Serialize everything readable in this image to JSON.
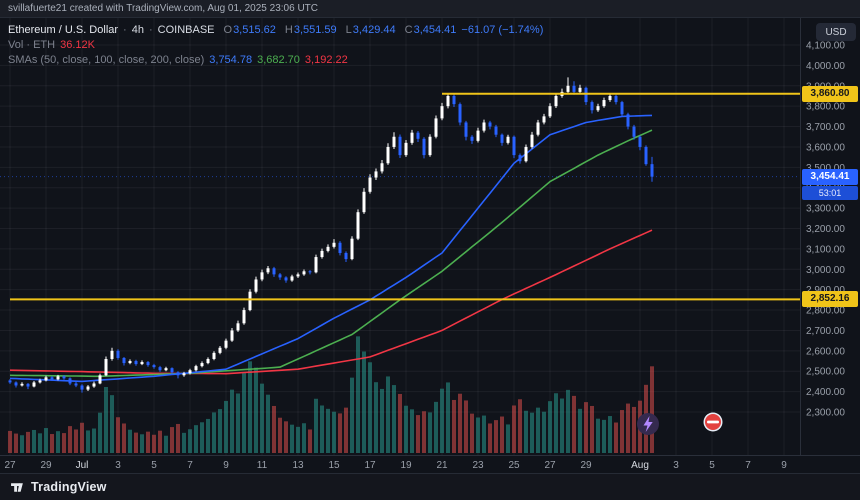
{
  "attribution": "svillafuerte21 created with TradingView.com, Aug 01, 2025 23:06 UTC",
  "footer": {
    "brand": "TradingView"
  },
  "legend": {
    "symbol": "Ethereum / U.S. Dollar",
    "separator": "·",
    "interval": "4h",
    "exchange": "COINBASE",
    "ohlc": {
      "o_label": "O",
      "o": "3,515.62",
      "h_label": "H",
      "h": "3,551.59",
      "l_label": "L",
      "l": "3,429.44",
      "c_label": "C",
      "c": "3,454.41",
      "change": "−61.07 (−1.74%)"
    },
    "volume": {
      "label": "Vol · ETH",
      "value": "36.12K"
    },
    "smas": {
      "label": "SMAs (50, close, 100, close, 200, close)",
      "sma50": "3,754.78",
      "sma100": "3,682.70",
      "sma200": "3,192.22"
    }
  },
  "price_axis": {
    "currency_label": "USD",
    "levels": {
      "upper": {
        "text": "3,860.80",
        "price": 3860.8,
        "color": "#f0c419"
      },
      "last": {
        "text": "3,454.41",
        "price": 3454.41,
        "countdown": "53:01",
        "color": "#2962ff"
      },
      "lower": {
        "text": "2,852.16",
        "price": 2852.16,
        "color": "#f0c419"
      }
    }
  },
  "stickers": [
    {
      "name": "lightning-swirl-sticker"
    },
    {
      "name": "no-entry-sticker"
    }
  ],
  "chart_data": {
    "type": "candlestick",
    "title": "Ethereum / U.S. Dollar 4h COINBASE",
    "symbol": "ETH/USD",
    "interval": "4h",
    "start_date": "2025-06-27",
    "end_date": "2025-08-01",
    "candles_per_day": 3,
    "ylim": [
      2300,
      4100
    ],
    "grid": true,
    "candle_format": [
      "open",
      "high",
      "low",
      "close",
      "volume_k"
    ],
    "colors": {
      "up": "#ffffff",
      "down": "#2962ff",
      "vol_up": "rgba(42,166,152,0.5)",
      "vol_down": "rgba(239,83,80,0.5)",
      "sma50": "#2962ff",
      "sma100": "#4caf50",
      "sma200": "#f23645",
      "level": "#f0c419"
    },
    "price_ticks": [
      "4,100.00",
      "4,000.00",
      "3,900.00",
      "3,800.00",
      "3,700.00",
      "3,600.00",
      "3,500.00",
      "3,400.00",
      "3,300.00",
      "3,200.00",
      "3,100.00",
      "3,000.00",
      "2,900.00",
      "2,800.00",
      "2,700.00",
      "2,600.00",
      "2,500.00",
      "2,400.00",
      "2,300.00"
    ],
    "time_ticks": [
      {
        "label": "27",
        "day": 0
      },
      {
        "label": "29",
        "day": 2
      },
      {
        "label": "Jul",
        "day": 4,
        "month": true
      },
      {
        "label": "3",
        "day": 6
      },
      {
        "label": "5",
        "day": 8
      },
      {
        "label": "7",
        "day": 10
      },
      {
        "label": "9",
        "day": 12
      },
      {
        "label": "11",
        "day": 14
      },
      {
        "label": "13",
        "day": 16
      },
      {
        "label": "15",
        "day": 18
      },
      {
        "label": "17",
        "day": 20
      },
      {
        "label": "19",
        "day": 22
      },
      {
        "label": "21",
        "day": 24
      },
      {
        "label": "23",
        "day": 26
      },
      {
        "label": "25",
        "day": 28
      },
      {
        "label": "27",
        "day": 30
      },
      {
        "label": "29",
        "day": 32
      },
      {
        "label": "Aug",
        "day": 35,
        "month": true
      },
      {
        "label": "3",
        "day": 37
      },
      {
        "label": "5",
        "day": 39
      },
      {
        "label": "7",
        "day": 41
      },
      {
        "label": "9",
        "day": 43
      }
    ],
    "levels": [
      {
        "price": 3860.8,
        "from_index": 72
      },
      {
        "price": 2852.16,
        "from_index": 0
      }
    ],
    "last": {
      "o": 3515.62,
      "h": 3551.59,
      "l": 3429.44,
      "c": 3454.41,
      "change": -61.07,
      "change_pct": -1.74,
      "volume_k": 36.12
    },
    "sma": {
      "sma50": {
        "i": [
          0,
          12,
          24,
          36,
          48,
          54,
          60,
          66,
          72,
          78,
          84,
          90,
          96,
          102,
          107
        ],
        "p": [
          2465,
          2450,
          2475,
          2510,
          2660,
          2760,
          2850,
          2960,
          3080,
          3300,
          3520,
          3660,
          3720,
          3750,
          3754.78
        ]
      },
      "sma100": {
        "i": [
          0,
          15,
          30,
          45,
          57,
          65,
          72,
          82,
          90,
          98,
          103,
          107
        ],
        "p": [
          2480,
          2475,
          2490,
          2520,
          2680,
          2850,
          2990,
          3230,
          3430,
          3560,
          3630,
          3682.7
        ]
      },
      "sma200": {
        "i": [
          0,
          12,
          24,
          36,
          48,
          60,
          72,
          82,
          90,
          100,
          107
        ],
        "p": [
          2505,
          2498,
          2490,
          2488,
          2510,
          2570,
          2700,
          2852,
          2960,
          3100,
          3192.22
        ]
      }
    },
    "candles": [
      [
        2455,
        2462,
        2438,
        2445,
        9.2
      ],
      [
        2445,
        2450,
        2420,
        2430,
        8.1
      ],
      [
        2430,
        2446,
        2425,
        2438,
        7.4
      ],
      [
        2438,
        2442,
        2412,
        2425,
        8.8
      ],
      [
        2425,
        2452,
        2421,
        2445,
        9.6
      ],
      [
        2445,
        2463,
        2440,
        2455,
        8.2
      ],
      [
        2455,
        2478,
        2450,
        2470,
        10.4
      ],
      [
        2470,
        2476,
        2452,
        2460,
        7.9
      ],
      [
        2460,
        2482,
        2455,
        2475,
        9.1
      ],
      [
        2475,
        2481,
        2458,
        2465,
        8.3
      ],
      [
        2465,
        2470,
        2432,
        2440,
        11.2
      ],
      [
        2440,
        2447,
        2422,
        2430,
        9.8
      ],
      [
        2430,
        2436,
        2395,
        2410,
        12.6
      ],
      [
        2410,
        2432,
        2403,
        2425,
        9.4
      ],
      [
        2425,
        2449,
        2419,
        2440,
        10.2
      ],
      [
        2440,
        2488,
        2436,
        2480,
        16.8
      ],
      [
        2480,
        2572,
        2476,
        2560,
        27.5
      ],
      [
        2560,
        2615,
        2552,
        2600,
        24.1
      ],
      [
        2600,
        2608,
        2556,
        2565,
        14.9
      ],
      [
        2565,
        2570,
        2528,
        2540,
        12.3
      ],
      [
        2540,
        2558,
        2534,
        2550,
        9.7
      ],
      [
        2550,
        2556,
        2527,
        2535,
        8.5
      ],
      [
        2535,
        2553,
        2530,
        2545,
        7.8
      ],
      [
        2545,
        2550,
        2522,
        2530,
        8.9
      ],
      [
        2530,
        2536,
        2512,
        2520,
        7.6
      ],
      [
        2520,
        2526,
        2497,
        2505,
        9.3
      ],
      [
        2505,
        2522,
        2500,
        2515,
        7.2
      ],
      [
        2515,
        2519,
        2486,
        2495,
        10.8
      ],
      [
        2495,
        2500,
        2465,
        2480,
        12.1
      ],
      [
        2480,
        2497,
        2473,
        2490,
        8.4
      ],
      [
        2490,
        2512,
        2484,
        2505,
        9.9
      ],
      [
        2505,
        2532,
        2499,
        2525,
        11.6
      ],
      [
        2525,
        2548,
        2519,
        2540,
        12.8
      ],
      [
        2540,
        2568,
        2534,
        2560,
        14.2
      ],
      [
        2560,
        2598,
        2554,
        2590,
        16.9
      ],
      [
        2590,
        2624,
        2583,
        2615,
        18.3
      ],
      [
        2615,
        2660,
        2608,
        2650,
        21.7
      ],
      [
        2650,
        2712,
        2644,
        2700,
        26.4
      ],
      [
        2700,
        2748,
        2693,
        2735,
        24.8
      ],
      [
        2735,
        2812,
        2728,
        2800,
        33.5
      ],
      [
        2800,
        2902,
        2794,
        2890,
        38.2
      ],
      [
        2890,
        2964,
        2882,
        2950,
        35.6
      ],
      [
        2950,
        2998,
        2941,
        2985,
        28.9
      ],
      [
        2985,
        3016,
        2976,
        3005,
        24.3
      ],
      [
        3005,
        3012,
        2963,
        2975,
        19.6
      ],
      [
        2975,
        2982,
        2948,
        2960,
        14.7
      ],
      [
        2960,
        2966,
        2934,
        2945,
        13.2
      ],
      [
        2945,
        2973,
        2939,
        2965,
        11.8
      ],
      [
        2965,
        2984,
        2957,
        2975,
        10.9
      ],
      [
        2975,
        2999,
        2968,
        2990,
        12.4
      ],
      [
        2990,
        2996,
        2975,
        2985,
        9.8
      ],
      [
        2985,
        3072,
        2980,
        3060,
        22.6
      ],
      [
        3060,
        3101,
        3052,
        3090,
        19.8
      ],
      [
        3090,
        3122,
        3083,
        3110,
        18.4
      ],
      [
        3110,
        3148,
        3102,
        3130,
        17.2
      ],
      [
        3130,
        3138,
        3068,
        3080,
        16.5
      ],
      [
        3080,
        3088,
        3036,
        3050,
        18.9
      ],
      [
        3050,
        3162,
        3044,
        3150,
        31.4
      ],
      [
        3150,
        3294,
        3143,
        3280,
        48.6
      ],
      [
        3280,
        3398,
        3272,
        3380,
        42.3
      ],
      [
        3380,
        3466,
        3371,
        3450,
        37.8
      ],
      [
        3450,
        3494,
        3438,
        3480,
        29.5
      ],
      [
        3480,
        3536,
        3470,
        3520,
        26.7
      ],
      [
        3520,
        3618,
        3512,
        3600,
        31.9
      ],
      [
        3600,
        3672,
        3590,
        3650,
        28.3
      ],
      [
        3650,
        3661,
        3546,
        3560,
        24.6
      ],
      [
        3560,
        3634,
        3551,
        3620,
        19.7
      ],
      [
        3620,
        3684,
        3611,
        3670,
        18.2
      ],
      [
        3670,
        3678,
        3624,
        3640,
        15.8
      ],
      [
        3640,
        3648,
        3544,
        3560,
        17.4
      ],
      [
        3560,
        3662,
        3552,
        3650,
        16.9
      ],
      [
        3650,
        3754,
        3642,
        3740,
        21.3
      ],
      [
        3740,
        3816,
        3731,
        3800,
        26.8
      ],
      [
        3800,
        3861,
        3789,
        3850,
        29.4
      ],
      [
        3850,
        3858,
        3796,
        3810,
        22.1
      ],
      [
        3810,
        3818,
        3706,
        3720,
        24.7
      ],
      [
        3720,
        3728,
        3632,
        3650,
        21.9
      ],
      [
        3650,
        3658,
        3615,
        3630,
        16.4
      ],
      [
        3630,
        3694,
        3622,
        3680,
        14.8
      ],
      [
        3680,
        3734,
        3671,
        3720,
        15.6
      ],
      [
        3720,
        3728,
        3686,
        3700,
        12.3
      ],
      [
        3700,
        3708,
        3648,
        3660,
        13.7
      ],
      [
        3660,
        3666,
        3606,
        3620,
        15.2
      ],
      [
        3620,
        3660,
        3612,
        3650,
        11.9
      ],
      [
        3650,
        3656,
        3545,
        3560,
        19.8
      ],
      [
        3560,
        3568,
        3518,
        3530,
        22.4
      ],
      [
        3530,
        3612,
        3524,
        3600,
        17.6
      ],
      [
        3600,
        3674,
        3592,
        3660,
        16.8
      ],
      [
        3660,
        3733,
        3652,
        3720,
        18.9
      ],
      [
        3720,
        3762,
        3711,
        3750,
        17.2
      ],
      [
        3750,
        3814,
        3742,
        3800,
        21.6
      ],
      [
        3800,
        3864,
        3791,
        3850,
        24.9
      ],
      [
        3850,
        3886,
        3841,
        3870,
        22.7
      ],
      [
        3870,
        3941,
        3862,
        3900,
        26.3
      ],
      [
        3900,
        3922,
        3856,
        3870,
        23.8
      ],
      [
        3870,
        3905,
        3861,
        3890,
        18.4
      ],
      [
        3890,
        3896,
        3806,
        3820,
        21.2
      ],
      [
        3820,
        3828,
        3764,
        3780,
        19.6
      ],
      [
        3780,
        3812,
        3772,
        3800,
        14.3
      ],
      [
        3800,
        3842,
        3792,
        3830,
        13.8
      ],
      [
        3830,
        3859,
        3821,
        3850,
        15.4
      ],
      [
        3850,
        3856,
        3808,
        3820,
        12.7
      ],
      [
        3820,
        3826,
        3748,
        3760,
        17.9
      ],
      [
        3760,
        3768,
        3686,
        3700,
        20.6
      ],
      [
        3700,
        3708,
        3636,
        3650,
        19.2
      ],
      [
        3650,
        3656,
        3584,
        3600,
        21.8
      ],
      [
        3600,
        3608,
        3508,
        3515.62,
        28.4
      ],
      [
        3515.62,
        3551.59,
        3429.44,
        3454.41,
        36.12
      ]
    ]
  }
}
